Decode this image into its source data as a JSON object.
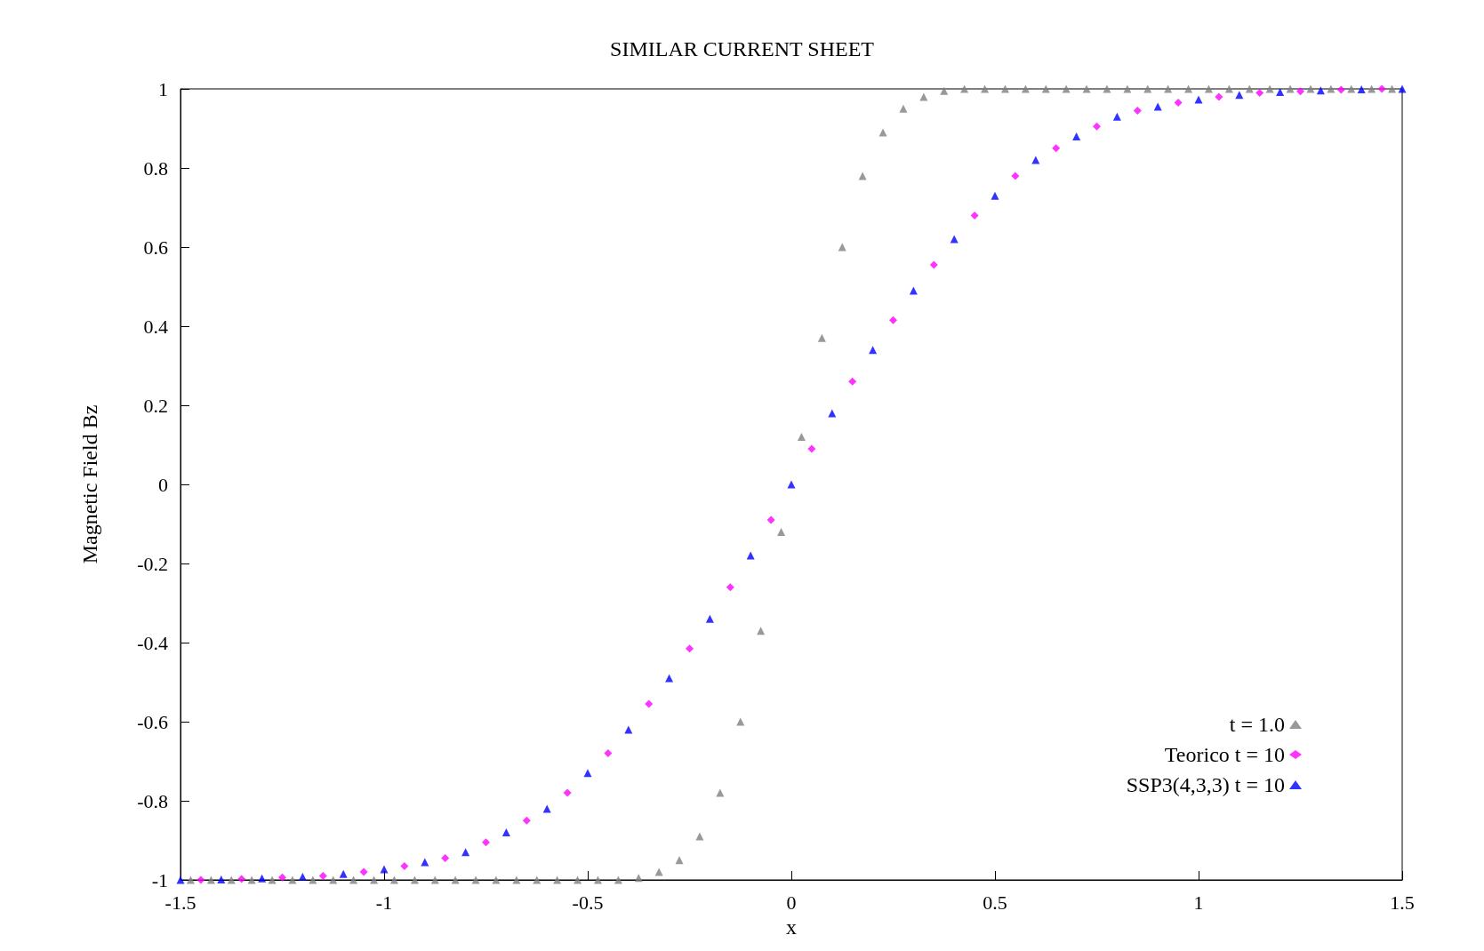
{
  "chart_data": {
    "type": "scatter",
    "title": "SIMILAR CURRENT SHEET",
    "xlabel": "x",
    "ylabel": "Magnetic Field Bz",
    "xlim": [
      -1.5,
      1.5
    ],
    "xticks": [
      -1.5,
      -1,
      -0.5,
      0,
      0.5,
      1,
      1.5
    ],
    "ylim": [
      -1,
      1
    ],
    "yticks": [
      -1,
      -0.8,
      -0.6,
      -0.4,
      -0.2,
      0,
      0.2,
      0.4,
      0.6,
      0.8,
      1
    ],
    "grid": false,
    "legend": "bottom right",
    "series": [
      {
        "name": "t = 1.0",
        "color": "#808080",
        "marker": "triangle",
        "x": [
          -1.475,
          -1.425,
          -1.375,
          -1.325,
          -1.275,
          -1.225,
          -1.175,
          -1.125,
          -1.075,
          -1.025,
          -0.975,
          -0.925,
          -0.875,
          -0.825,
          -0.775,
          -0.725,
          -0.675,
          -0.625,
          -0.575,
          -0.525,
          -0.475,
          -0.425,
          -0.375,
          -0.325,
          -0.275,
          -0.225,
          -0.175,
          -0.125,
          -0.075,
          -0.025,
          0.025,
          0.075,
          0.125,
          0.175,
          0.225,
          0.275,
          0.325,
          0.375,
          0.425,
          0.475,
          0.525,
          0.575,
          0.625,
          0.675,
          0.725,
          0.775,
          0.825,
          0.875,
          0.925,
          0.975,
          1.025,
          1.075,
          1.125,
          1.175,
          1.225,
          1.275,
          1.325,
          1.375,
          1.425,
          1.475
        ],
        "values": [
          -1,
          -1,
          -1,
          -1,
          -1,
          -1,
          -1,
          -1,
          -1,
          -1,
          -1,
          -1,
          -1,
          -1,
          -1,
          -1,
          -1,
          -1,
          -1,
          -1,
          -1,
          -1,
          -0.995,
          -0.98,
          -0.95,
          -0.89,
          -0.78,
          -0.6,
          -0.37,
          -0.12,
          0.12,
          0.37,
          0.6,
          0.78,
          0.89,
          0.95,
          0.98,
          0.995,
          1,
          1,
          1,
          1,
          1,
          1,
          1,
          1,
          1,
          1,
          1,
          1,
          1,
          1,
          1,
          1,
          1,
          1,
          1,
          1,
          1,
          1
        ]
      },
      {
        "name": "Teorico t = 10",
        "color": "#ff00ff",
        "marker": "diamond",
        "x": [
          -1.45,
          -1.35,
          -1.25,
          -1.15,
          -1.05,
          -0.95,
          -0.85,
          -0.75,
          -0.65,
          -0.55,
          -0.45,
          -0.35,
          -0.25,
          -0.15,
          -0.05,
          0.05,
          0.15,
          0.25,
          0.35,
          0.45,
          0.55,
          0.65,
          0.75,
          0.85,
          0.95,
          1.05,
          1.15,
          1.25,
          1.35,
          1.45
        ],
        "values": [
          -1,
          -0.998,
          -0.994,
          -0.99,
          -0.98,
          -0.965,
          -0.945,
          -0.905,
          -0.85,
          -0.78,
          -0.68,
          -0.555,
          -0.415,
          -0.26,
          -0.09,
          0.09,
          0.26,
          0.415,
          0.555,
          0.68,
          0.78,
          0.85,
          0.905,
          0.945,
          0.965,
          0.98,
          0.99,
          0.994,
          0.998,
          1
        ]
      },
      {
        "name": "SSP3(4,3,3) t = 10",
        "color": "#0000ff",
        "marker": "triangle",
        "x": [
          -1.5,
          -1.4,
          -1.3,
          -1.2,
          -1.1,
          -1,
          -0.9,
          -0.8,
          -0.7,
          -0.6,
          -0.5,
          -0.4,
          -0.3,
          -0.2,
          -0.1,
          0,
          0.1,
          0.2,
          0.3,
          0.4,
          0.5,
          0.6,
          0.7,
          0.8,
          0.9,
          1,
          1.1,
          1.2,
          1.3,
          1.4,
          1.5
        ],
        "values": [
          -1,
          -0.999,
          -0.996,
          -0.992,
          -0.985,
          -0.973,
          -0.955,
          -0.93,
          -0.88,
          -0.82,
          -0.73,
          -0.62,
          -0.49,
          -0.34,
          -0.18,
          0,
          0.18,
          0.34,
          0.49,
          0.62,
          0.73,
          0.82,
          0.88,
          0.93,
          0.955,
          0.973,
          0.985,
          0.992,
          0.996,
          0.999,
          1
        ]
      }
    ]
  }
}
